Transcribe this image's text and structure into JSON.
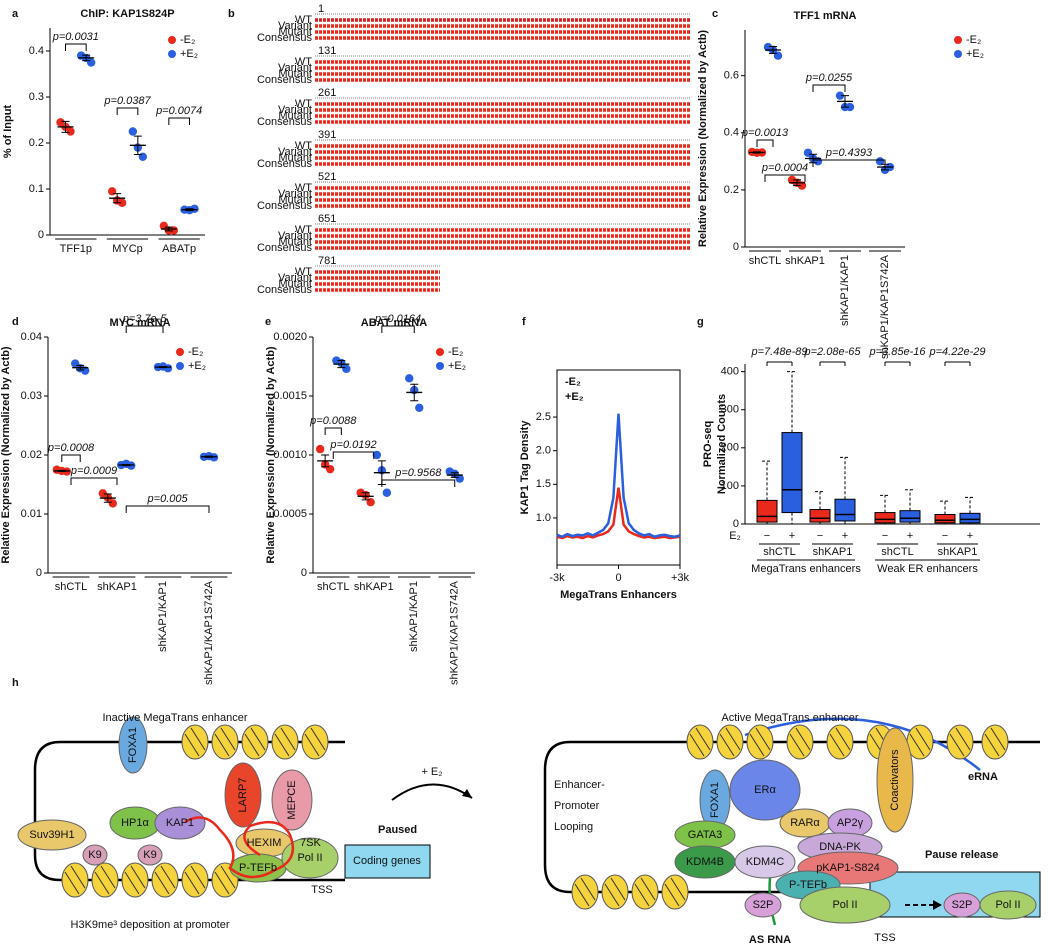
{
  "panel_letters": [
    "a",
    "b",
    "c",
    "d",
    "e",
    "f",
    "g",
    "h"
  ],
  "sequence_alignment": {
    "row_labels": [
      "WT",
      "Variant",
      "Mutant",
      "Consensus"
    ],
    "block_starts": [
      1,
      131,
      261,
      391,
      521,
      651,
      781
    ]
  },
  "chart_data": [
    {
      "type": "dot",
      "title": "ChIP: KAP1S824P",
      "ylabel": "% of Input",
      "categories": [
        "TFF1p",
        "MYCp",
        "ABATp"
      ],
      "ylim": [
        0,
        0.45
      ],
      "yticks": [
        0,
        0.1,
        0.2,
        0.3,
        0.4
      ],
      "series": [
        {
          "name": "-E₂",
          "color": "#e8291c",
          "values": [
            [
              0.245,
              0.225,
              0.235
            ],
            [
              0.095,
              0.07,
              0.075
            ],
            [
              0.02,
              0.01,
              0.01
            ]
          ],
          "mean": [
            0.235,
            0.08,
            0.013
          ],
          "error": [
            0.012,
            0.01,
            0.004
          ]
        },
        {
          "name": "+E₂",
          "color": "#2a5fe0",
          "values": [
            [
              0.39,
              0.375,
              0.385
            ],
            [
              0.225,
              0.17,
              0.19
            ],
            [
              0.055,
              0.057,
              0.054
            ]
          ],
          "mean": [
            0.385,
            0.195,
            0.055
          ],
          "error": [
            0.006,
            0.02,
            0.002
          ]
        }
      ],
      "annotations": [
        "p=0.0031",
        "p=0.0387",
        "p=0.0074"
      ]
    },
    {
      "type": "dot",
      "title": "TFF1 mRNA",
      "ylabel": "Relative Expression (Normalized by Actb)",
      "categories": [
        "shCTL",
        "shKAP1",
        "shKAP1/KAP1",
        "shKAP1/KAP1S742A"
      ],
      "ylim": [
        0,
        0.76
      ],
      "yticks": [
        0,
        0.2,
        0.4,
        0.6
      ],
      "series": [
        {
          "name": "-E₂",
          "color": "#e8291c",
          "values": [
            [
              0.333,
              0.331,
              0.33
            ],
            [
              0.235,
              0.215,
              0.225
            ],
            null,
            null
          ],
          "mean": [
            0.331,
            0.225,
            null,
            null
          ],
          "error": [
            0.002,
            0.01,
            null,
            null
          ]
        },
        {
          "name": "+E₂",
          "color": "#2a5fe0",
          "values": [
            [
              0.7,
              0.67,
              0.69
            ],
            [
              0.33,
              0.3,
              0.31
            ],
            [
              0.53,
              0.49,
              0.49
            ],
            [
              0.3,
              0.28,
              0.27
            ]
          ],
          "mean": [
            0.69,
            0.31,
            0.51,
            0.28
          ],
          "error": [
            0.012,
            0.015,
            0.02,
            0.01
          ]
        }
      ],
      "annotations": [
        "p=0.0013",
        "p=0.0004",
        "p=0.0255",
        "p=0.4393"
      ]
    },
    {
      "type": "dot",
      "title": "MYC mRNA",
      "ylabel": "Relative Expression (Normalized by Actb)",
      "categories": [
        "shCTL",
        "shKAP1",
        "shKAP1/KAP1",
        "shKAP1/KAP1S742A"
      ],
      "ylim": [
        0,
        0.04
      ],
      "yticks": [
        0,
        0.01,
        0.02,
        0.03,
        0.04
      ],
      "series": [
        {
          "name": "-E₂",
          "color": "#e8291c",
          "values": [
            [
              0.0175,
              0.0172,
              0.0173
            ],
            [
              0.0135,
              0.0118,
              0.0128
            ],
            null,
            null
          ],
          "mean": [
            0.0173,
            0.0127,
            null,
            null
          ],
          "error": [
            0.0001,
            0.0007,
            null,
            null
          ]
        },
        {
          "name": "+E₂",
          "color": "#2a5fe0",
          "values": [
            [
              0.0355,
              0.0343,
              0.0347
            ],
            [
              0.0183,
              0.0182,
              0.0185
            ],
            [
              0.0349,
              0.0347,
              0.035
            ],
            [
              0.0197,
              0.0196,
              0.0198
            ]
          ],
          "mean": [
            0.0348,
            0.0183,
            0.0349,
            0.0197
          ],
          "error": [
            0.0004,
            0.0001,
            0.0001,
            0.0001
          ]
        }
      ],
      "annotations": [
        "p=3.7e-5",
        "p=0.0008",
        "p=0.0009",
        "p=0.005"
      ]
    },
    {
      "type": "dot",
      "title": "ABAT mRNA",
      "ylabel": "Relative Expression (Normalized by Actb)",
      "categories": [
        "shCTL",
        "shKAP1",
        "shKAP1/KAP1",
        "shKAP1/KAP1S742A"
      ],
      "ylim": [
        0,
        0.002
      ],
      "yticks": [
        0,
        {
          "value": 0.0005,
          "label": "0.0005"
        },
        {
          "value": 0.001,
          "label": "0.0010"
        },
        {
          "value": 0.0015,
          "label": "0.0015"
        },
        {
          "value": 0.002,
          "label": "0.0020"
        }
      ],
      "series": [
        {
          "name": "-E₂",
          "color": "#e8291c",
          "values": [
            [
              0.00105,
              0.00088,
              0.00092
            ],
            [
              0.00068,
              0.0006,
              0.00066
            ],
            null,
            null
          ],
          "mean": [
            0.00095,
            0.00065,
            null,
            null
          ],
          "error": [
            5e-05,
            3e-05,
            null,
            null
          ]
        },
        {
          "name": "+E₂",
          "color": "#2a5fe0",
          "values": [
            [
              0.0018,
              0.00173,
              0.00178
            ],
            [
              0.001,
              0.00068,
              0.00087
            ],
            [
              0.00165,
              0.0014,
              0.00155
            ],
            [
              0.00086,
              0.0008,
              0.00084
            ]
          ],
          "mean": [
            0.00177,
            0.00085,
            0.00153,
            0.00083
          ],
          "error": [
            3e-05,
            0.0001,
            7e-05,
            2e-05
          ]
        }
      ],
      "annotations": [
        "p=0.0164",
        "p=0.0088",
        "p=0.0192",
        "p=0.9568"
      ]
    },
    {
      "type": "line",
      "ylabel": "KAP1 Tag Density",
      "xlabel": "MegaTrans Enhancers",
      "xlim": [
        -3000,
        3000
      ],
      "xticks": [
        {
          "value": -3000,
          "label": "-3k"
        },
        0,
        {
          "value": 3000,
          "label": "+3k"
        }
      ],
      "ylim": [
        0.3,
        3.2
      ],
      "yticks": [
        {
          "value": 1,
          "label": "1.0"
        },
        {
          "value": 1.5,
          "label": "1.5"
        },
        {
          "value": 2,
          "label": "2.0"
        },
        {
          "value": 2.5,
          "label": "2.5"
        }
      ],
      "x": [
        -3000,
        -2750,
        -2500,
        -2250,
        -2000,
        -1750,
        -1500,
        -1250,
        -1000,
        -750,
        -500,
        -250,
        0,
        250,
        500,
        750,
        1000,
        1250,
        1500,
        1750,
        2000,
        2250,
        2500,
        2750,
        3000
      ],
      "series": [
        {
          "name": "-E₂",
          "color": "#e8291c",
          "values": [
            0.72,
            0.7,
            0.73,
            0.71,
            0.72,
            0.7,
            0.73,
            0.71,
            0.74,
            0.76,
            0.8,
            0.9,
            1.45,
            0.9,
            0.8,
            0.76,
            0.73,
            0.71,
            0.72,
            0.7,
            0.71,
            0.72,
            0.7,
            0.71,
            0.72
          ]
        },
        {
          "name": "+E₂",
          "color": "#2a5fe0",
          "values": [
            0.75,
            0.72,
            0.76,
            0.73,
            0.75,
            0.74,
            0.77,
            0.74,
            0.78,
            0.82,
            0.92,
            1.3,
            2.55,
            1.3,
            0.92,
            0.82,
            0.77,
            0.74,
            0.76,
            0.72,
            0.74,
            0.75,
            0.73,
            0.72,
            0.74
          ]
        }
      ]
    },
    {
      "type": "box",
      "ylabel_lines": [
        "PRO-seq",
        "Normalized Counts"
      ],
      "factor_label": "E₂",
      "categories": [
        "−",
        "+",
        "−",
        "+",
        "−",
        "+",
        "−",
        "+"
      ],
      "conditions": [
        "shCTL",
        "shKAP1",
        "shCTL",
        "shKAP1"
      ],
      "groups": [
        "MegaTrans enhancers",
        "Weak ER enhancers"
      ],
      "colors": [
        "#e8291c",
        "#2a5fe0",
        "#e8291c",
        "#2a5fe0",
        "#e8291c",
        "#2a5fe0",
        "#e8291c",
        "#2a5fe0"
      ],
      "ylim": [
        0,
        420
      ],
      "yticks": [
        0,
        100,
        200,
        300,
        400
      ],
      "low": [
        0,
        0,
        0,
        0,
        0,
        0,
        0,
        0
      ],
      "q1": [
        5,
        30,
        5,
        8,
        3,
        5,
        3,
        3
      ],
      "median": [
        20,
        90,
        15,
        25,
        12,
        15,
        10,
        12
      ],
      "q3": [
        62,
        240,
        38,
        65,
        30,
        35,
        25,
        28
      ],
      "high": [
        165,
        400,
        85,
        175,
        75,
        90,
        60,
        70
      ],
      "annotations": [
        "p=7.48e-89",
        "p=2.08e-65",
        "p=3.85e-16",
        "p=4.22e-29"
      ]
    }
  ],
  "diagram": {
    "left_title": "Inactive MegaTrans enhancer",
    "right_title": "Active MegaTrans enhancer",
    "left_nodes": [
      "FOXA1",
      "LARP7",
      "MEPCE",
      "Suv39H1",
      "HP1α",
      "KAP1",
      "K9",
      "K9",
      "HEXIM",
      "P-TEFb",
      "Pol II"
    ],
    "left_texts": [
      "7SK",
      "Paused",
      "Coding genes",
      "TSS",
      "H3K9me³ deposition at promoter"
    ],
    "stimulus": "+ E₂",
    "looping": [
      "Enhancer-",
      "Promoter",
      "Looping"
    ],
    "right_nodes": [
      "FOXA1",
      "ERα",
      "Coactivators",
      "RARα",
      "AP2γ",
      "GATA3",
      "DNA-PK",
      "KDM4B",
      "KDM4C",
      "pKAP1-S824",
      "P-TEFb",
      "S2P",
      "Pol II",
      "S2P",
      "Pol II"
    ],
    "right_texts": [
      "eRNA",
      "Pause release",
      "TSS",
      "AS RNA"
    ]
  }
}
